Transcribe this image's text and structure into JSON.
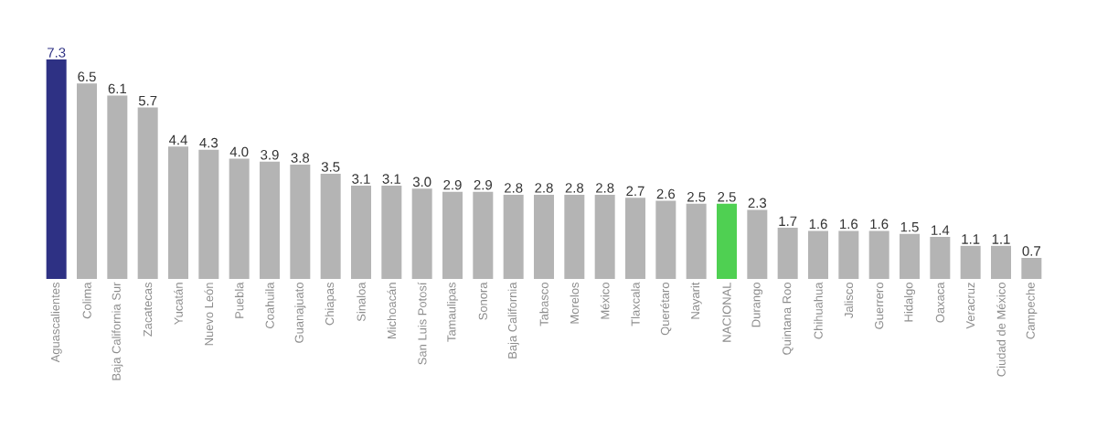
{
  "chart_data": {
    "type": "bar",
    "categories": [
      "Aguascalientes",
      "Colima",
      "Baja California Sur",
      "Zacatecas",
      "Yucatán",
      "Nuevo León",
      "Puebla",
      "Coahuila",
      "Guanajuato",
      "Chiapas",
      "Sinaloa",
      "Michoacán",
      "San Luis Potosí",
      "Tamaulipas",
      "Sonora",
      "Baja California",
      "Tabasco",
      "Morelos",
      "México",
      "Tlaxcala",
      "Querétaro",
      "Nayarit",
      "NACIONAL",
      "Durango",
      "Quintana Roo",
      "Chihuahua",
      "Jalisco",
      "Guerrero",
      "Hidalgo",
      "Oaxaca",
      "Veracruz",
      "Ciudad de México",
      "Campeche"
    ],
    "values": [
      7.3,
      6.5,
      6.1,
      5.7,
      4.4,
      4.3,
      4.0,
      3.9,
      3.8,
      3.5,
      3.1,
      3.1,
      3.0,
      2.9,
      2.9,
      2.8,
      2.8,
      2.8,
      2.8,
      2.7,
      2.6,
      2.5,
      2.5,
      2.3,
      1.7,
      1.6,
      1.6,
      1.6,
      1.5,
      1.4,
      1.1,
      1.1,
      0.7
    ],
    "colors": [
      "#2e3184",
      "#b4b4b4",
      "#b4b4b4",
      "#b4b4b4",
      "#b4b4b4",
      "#b4b4b4",
      "#b4b4b4",
      "#b4b4b4",
      "#b4b4b4",
      "#b4b4b4",
      "#b4b4b4",
      "#b4b4b4",
      "#b4b4b4",
      "#b4b4b4",
      "#b4b4b4",
      "#b4b4b4",
      "#b4b4b4",
      "#b4b4b4",
      "#b4b4b4",
      "#b4b4b4",
      "#b4b4b4",
      "#b4b4b4",
      "#4fd052",
      "#b4b4b4",
      "#b4b4b4",
      "#b4b4b4",
      "#b4b4b4",
      "#b4b4b4",
      "#b4b4b4",
      "#b4b4b4",
      "#b4b4b4",
      "#b4b4b4",
      "#b4b4b4"
    ],
    "value_labels": [
      "7.3",
      "6.5",
      "6.1",
      "5.7",
      "4.4",
      "4.3",
      "4.0",
      "3.9",
      "3.8",
      "3.5",
      "3.1",
      "3.1",
      "3.0",
      "2.9",
      "2.9",
      "2.8",
      "2.8",
      "2.8",
      "2.8",
      "2.7",
      "2.6",
      "2.5",
      "2.5",
      "2.3",
      "1.7",
      "1.6",
      "1.6",
      "1.6",
      "1.5",
      "1.4",
      "1.1",
      "1.1",
      "0.7"
    ]
  }
}
